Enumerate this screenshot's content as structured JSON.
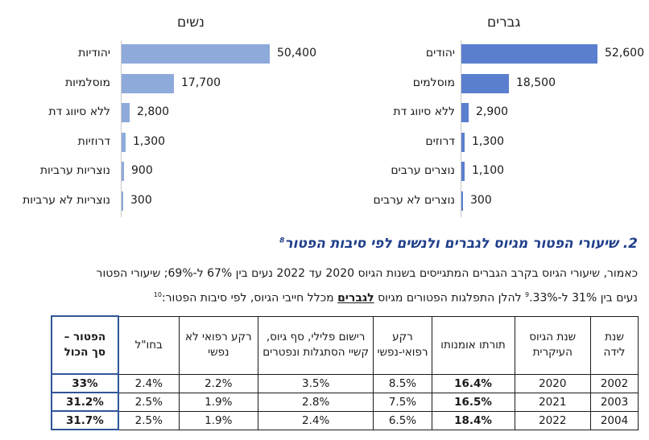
{
  "charts": {
    "women": {
      "title": "נשים",
      "color": "#8eaadb",
      "categories": [
        "יהודיות",
        "מוסלמיות",
        "ללא סיווג דת",
        "דרוזיות",
        "נוצריות ערביות",
        "נוצריות לא ערביות"
      ],
      "values": [
        50400,
        17700,
        2800,
        1300,
        900,
        300
      ],
      "value_labels": [
        "50,400",
        "17,700",
        "2,800",
        "1,300",
        "900",
        "300"
      ]
    },
    "men": {
      "title": "גברים",
      "color": "#5b7fcf",
      "categories": [
        "יהודים",
        "מוסלמים",
        "ללא סיווג דת",
        "דרוזים",
        "נוצרים ערבים",
        "נוצרים לא ערבים"
      ],
      "values": [
        52600,
        18500,
        2900,
        1300,
        1100,
        300
      ],
      "value_labels": [
        "52,600",
        "18,500",
        "2,900",
        "1,300",
        "1,100",
        "300"
      ]
    }
  },
  "section": {
    "number": "2.",
    "title": "שיעורי הפטור מגיוס לגברים ולנשים לפי סיבות הפטור",
    "footnote": "8"
  },
  "paragraph": {
    "line1": "כאמור, שיעורי הגיוס בקרב הגברים המתגייסים בשנות הגיוס 2020 עד 2022 נעים בין 67% ל-69%; שיעורי הפטור",
    "line2_a": "נעים בין 31% ל-33%.",
    "line2_fn1": "9",
    "line2_b": " להלן התפלגות הפטורים מגיוס ",
    "line2_u": "לגברים",
    "line2_c": " מכלל חייבי הגיוס, לפי סיבות הפטור:",
    "line2_fn2": "10"
  },
  "table": {
    "headers": [
      "שנת לידה",
      "שנת הגיוס העיקרית",
      "תורתו אומנותו",
      "רקע רפואי-נפשי",
      "רישום פלילי, סף גיוס, קשיי הסתגלות ונפטרים",
      "רקע רפואי לא נפשי",
      "בחו\"ל",
      "הפטור – סך הכול"
    ],
    "rows": [
      [
        "2002",
        "2020",
        "16.4%",
        "8.5%",
        "3.5%",
        "2.2%",
        "2.4%",
        "33%"
      ],
      [
        "2003",
        "2021",
        "16.5%",
        "7.5%",
        "2.8%",
        "1.9%",
        "2.5%",
        "31.2%"
      ],
      [
        "2004",
        "2022",
        "18.4%",
        "6.5%",
        "2.4%",
        "1.9%",
        "2.5%",
        "31.7%"
      ]
    ]
  }
}
